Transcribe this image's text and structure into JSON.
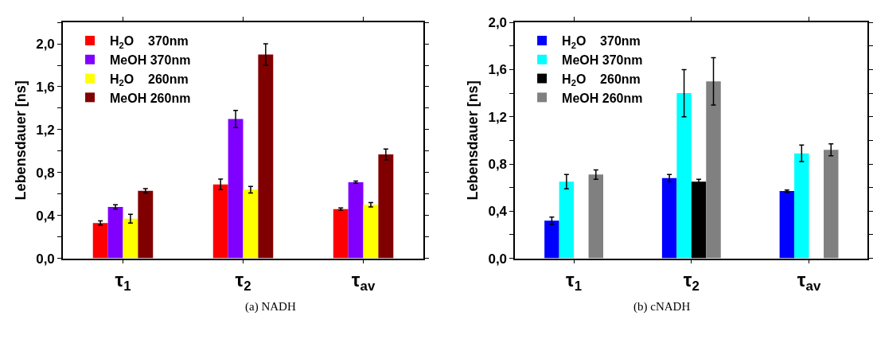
{
  "chart_data": [
    {
      "type": "bar",
      "categories": [
        "τ$_{1}$",
        "τ$_{2}$",
        "τ$_{av}$"
      ],
      "ylabel": "Lebensdauer [ns]",
      "ylim": [
        0,
        2.2
      ],
      "yticks": [
        {
          "value": 0,
          "label": "0,0"
        },
        {
          "value": 0.2,
          "label": null
        },
        {
          "value": 0.4,
          "label": "0,4"
        },
        {
          "value": 0.6,
          "label": null
        },
        {
          "value": 0.8,
          "label": "0,8"
        },
        {
          "value": 1.0,
          "label": null
        },
        {
          "value": 1.2,
          "label": "1,2"
        },
        {
          "value": 1.4,
          "label": null
        },
        {
          "value": 1.6,
          "label": "1,6"
        },
        {
          "value": 1.8,
          "label": null
        },
        {
          "value": 2.0,
          "label": "2,0"
        },
        {
          "value": 2.2,
          "label": null
        }
      ],
      "legend": "top left",
      "annotations": [
        "(a) NADH"
      ],
      "series": [
        {
          "name": "H$_{2}$O    370nm",
          "color": "#ff0000",
          "values": [
            0.33,
            0.69,
            0.46
          ],
          "errors": [
            0.02,
            0.05,
            0.01
          ]
        },
        {
          "name": "MeOH 370nm",
          "color": "#8000ff",
          "values": [
            0.48,
            1.3,
            0.71
          ],
          "errors": [
            0.02,
            0.08,
            0.01
          ]
        },
        {
          "name": "H$_{2}$O    260nm",
          "color": "#ffff00",
          "values": [
            0.37,
            0.64,
            0.5
          ],
          "errors": [
            0.04,
            0.03,
            0.02
          ]
        },
        {
          "name": "MeOH 260nm",
          "color": "#800000",
          "values": [
            0.63,
            1.9,
            0.97
          ],
          "errors": [
            0.02,
            0.1,
            0.05
          ]
        }
      ]
    },
    {
      "type": "bar",
      "categories": [
        "τ$_{1}$",
        "τ$_{2}$",
        "τ$_{av}$"
      ],
      "ylabel": "Lebensdauer [ns]",
      "ylim": [
        0,
        2.0
      ],
      "yticks": [
        {
          "value": 0,
          "label": "0,0"
        },
        {
          "value": 0.2,
          "label": null
        },
        {
          "value": 0.4,
          "label": "0,4"
        },
        {
          "value": 0.6,
          "label": null
        },
        {
          "value": 0.8,
          "label": "0,8"
        },
        {
          "value": 1.0,
          "label": null
        },
        {
          "value": 1.2,
          "label": "1,2"
        },
        {
          "value": 1.4,
          "label": null
        },
        {
          "value": 1.6,
          "label": "1,6"
        },
        {
          "value": 1.8,
          "label": null
        },
        {
          "value": 2.0,
          "label": "2,0"
        }
      ],
      "legend": "top left",
      "annotations": [
        "(b) cNADH"
      ],
      "series": [
        {
          "name": "H$_{2}$O    370nm",
          "color": "#0000ff",
          "values": [
            0.32,
            0.68,
            0.57
          ],
          "errors": [
            0.03,
            0.03,
            0.01
          ]
        },
        {
          "name": "MeOH 370nm",
          "color": "#00ffff",
          "values": [
            0.65,
            1.4,
            0.89
          ],
          "errors": [
            0.06,
            0.2,
            0.07
          ]
        },
        {
          "name": "H$_{2}$O    260nm",
          "color": "#000000",
          "values": [
            null,
            0.65,
            null
          ],
          "errors": [
            null,
            0.02,
            null
          ]
        },
        {
          "name": "MeOH 260nm",
          "color": "#808080",
          "values": [
            0.71,
            1.5,
            0.92
          ],
          "errors": [
            0.04,
            0.2,
            0.05
          ]
        }
      ]
    }
  ]
}
